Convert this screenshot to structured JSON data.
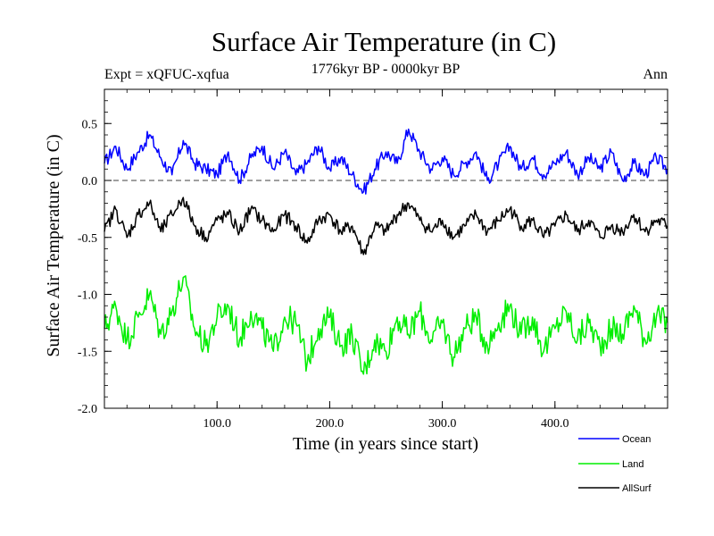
{
  "header": {
    "expt": "Expt = xQFUC-xqfua",
    "period": "1776kyr BP - 0000kyr BP",
    "season": "Ann"
  },
  "chart_data": {
    "type": "line",
    "title": "Surface Air Temperature (in C)",
    "xlabel": "Time (in years since start)",
    "ylabel": "Surface Air Temperature (in C)",
    "xlim": [
      0,
      500
    ],
    "ylim": [
      -2.0,
      0.8
    ],
    "xticks": [
      100,
      200,
      300,
      400
    ],
    "xtick_labels": [
      "100.0",
      "200.0",
      "300.0",
      "400.0"
    ],
    "yticks": [
      0.5,
      0.0,
      -0.5,
      -1.0,
      -1.5,
      -2.0
    ],
    "ytick_labels": [
      "0.5",
      "0.0",
      "-0.5",
      "-1.0",
      "-1.5",
      "-2.0"
    ],
    "reference_line": 0.0,
    "legend_position": "bottom-right",
    "series": [
      {
        "name": "Ocean",
        "color": "#0000ff",
        "x": [
          0,
          10,
          20,
          30,
          40,
          50,
          60,
          70,
          80,
          90,
          100,
          110,
          120,
          130,
          140,
          150,
          160,
          170,
          180,
          190,
          200,
          210,
          220,
          230,
          240,
          250,
          260,
          270,
          280,
          290,
          300,
          310,
          320,
          330,
          340,
          350,
          360,
          370,
          380,
          390,
          400,
          410,
          420,
          430,
          440,
          450,
          460,
          470,
          480,
          490,
          500
        ],
        "values": [
          0.15,
          0.3,
          0.1,
          0.25,
          0.4,
          0.2,
          0.05,
          0.35,
          0.15,
          0.1,
          0.05,
          0.25,
          0.0,
          0.2,
          0.3,
          0.1,
          0.25,
          0.05,
          0.15,
          0.3,
          0.1,
          0.2,
          0.05,
          -0.1,
          0.1,
          0.25,
          0.15,
          0.45,
          0.25,
          0.1,
          0.2,
          0.05,
          0.15,
          0.25,
          0.0,
          0.15,
          0.3,
          0.1,
          0.2,
          0.05,
          0.15,
          0.25,
          0.05,
          0.2,
          0.1,
          0.25,
          0.0,
          0.15,
          0.05,
          0.2,
          0.1
        ]
      },
      {
        "name": "Land",
        "color": "#00ee00",
        "x": [
          0,
          10,
          20,
          30,
          40,
          50,
          60,
          70,
          80,
          90,
          100,
          110,
          120,
          130,
          140,
          150,
          160,
          170,
          180,
          190,
          200,
          210,
          220,
          230,
          240,
          250,
          260,
          270,
          280,
          290,
          300,
          310,
          320,
          330,
          340,
          350,
          360,
          370,
          380,
          390,
          400,
          410,
          420,
          430,
          440,
          450,
          460,
          470,
          480,
          490,
          500
        ],
        "values": [
          -1.3,
          -1.1,
          -1.4,
          -1.2,
          -1.0,
          -1.35,
          -1.15,
          -0.85,
          -1.3,
          -1.45,
          -1.2,
          -1.1,
          -1.4,
          -1.15,
          -1.3,
          -1.5,
          -1.2,
          -1.25,
          -1.6,
          -1.3,
          -1.2,
          -1.45,
          -1.35,
          -1.7,
          -1.4,
          -1.5,
          -1.2,
          -1.35,
          -1.15,
          -1.4,
          -1.25,
          -1.55,
          -1.3,
          -1.2,
          -1.45,
          -1.25,
          -1.1,
          -1.35,
          -1.2,
          -1.5,
          -1.3,
          -1.15,
          -1.4,
          -1.25,
          -1.45,
          -1.3,
          -1.35,
          -1.1,
          -1.4,
          -1.2,
          -1.25
        ]
      },
      {
        "name": "AllSurf",
        "color": "#000000",
        "x": [
          0,
          10,
          20,
          30,
          40,
          50,
          60,
          70,
          80,
          90,
          100,
          110,
          120,
          130,
          140,
          150,
          160,
          170,
          180,
          190,
          200,
          210,
          220,
          230,
          240,
          250,
          260,
          270,
          280,
          290,
          300,
          310,
          320,
          330,
          340,
          350,
          360,
          370,
          380,
          390,
          400,
          410,
          420,
          430,
          440,
          450,
          460,
          470,
          480,
          490,
          500
        ],
        "values": [
          -0.45,
          -0.25,
          -0.5,
          -0.3,
          -0.2,
          -0.45,
          -0.3,
          -0.15,
          -0.4,
          -0.5,
          -0.35,
          -0.3,
          -0.45,
          -0.25,
          -0.35,
          -0.45,
          -0.3,
          -0.4,
          -0.55,
          -0.35,
          -0.3,
          -0.45,
          -0.4,
          -0.65,
          -0.4,
          -0.45,
          -0.3,
          -0.2,
          -0.35,
          -0.45,
          -0.35,
          -0.5,
          -0.4,
          -0.3,
          -0.45,
          -0.35,
          -0.25,
          -0.4,
          -0.35,
          -0.5,
          -0.4,
          -0.3,
          -0.45,
          -0.35,
          -0.5,
          -0.4,
          -0.45,
          -0.3,
          -0.45,
          -0.35,
          -0.4
        ]
      }
    ]
  }
}
